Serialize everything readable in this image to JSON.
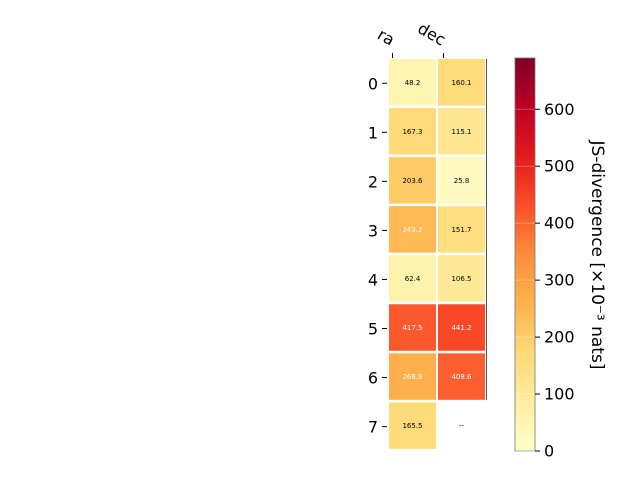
{
  "chart_data": {
    "type": "heatmap",
    "columns": [
      "ra",
      "dec"
    ],
    "rows": [
      "0",
      "1",
      "2",
      "3",
      "4",
      "5",
      "6",
      "7"
    ],
    "values": [
      [
        48.2,
        160.1
      ],
      [
        167.3,
        115.1
      ],
      [
        203.6,
        25.8
      ],
      [
        243.2,
        151.7
      ],
      [
        62.4,
        106.5
      ],
      [
        417.5,
        441.2
      ],
      [
        268.8,
        408.6
      ],
      [
        165.5,
        null
      ]
    ],
    "cell_labels": [
      [
        "48.2",
        "160.1"
      ],
      [
        "167.3",
        "115.1"
      ],
      [
        "203.6",
        "25.8"
      ],
      [
        "243.2",
        "151.7"
      ],
      [
        "62.4",
        "106.5"
      ],
      [
        "417.5",
        "441.2"
      ],
      [
        "268.8",
        "408.6"
      ],
      [
        "165.5",
        "--"
      ]
    ],
    "colorbar": {
      "label": "JS-divergence [×10⁻³ nats]",
      "range": [
        0,
        690
      ],
      "ticks": [
        0,
        100,
        200,
        300,
        400,
        500,
        600
      ],
      "tick_labels": [
        "0",
        "100",
        "200",
        "300",
        "400",
        "500",
        "600"
      ],
      "colormap": "YlOrRd",
      "colormap_stops": [
        "#ffffcc",
        "#ffeda0",
        "#fed976",
        "#feb24c",
        "#fd8d3c",
        "#fc4e2a",
        "#e31a1c",
        "#bd0026",
        "#800026"
      ]
    },
    "dark_text_color": "#000000",
    "light_text_color": "#ffffff",
    "empty_cell_color": "#ffffff"
  }
}
